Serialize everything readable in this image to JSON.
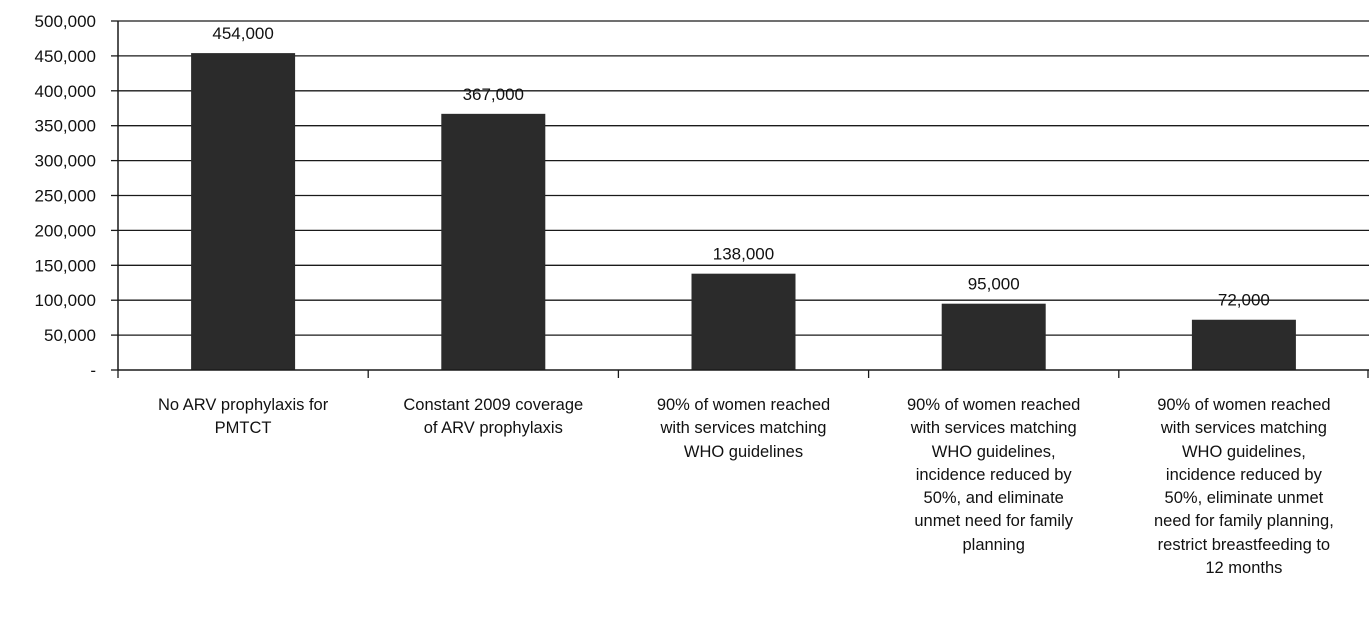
{
  "chart_data": {
    "type": "bar",
    "title": "",
    "xlabel": "",
    "ylabel": "",
    "ylim": [
      0,
      500000
    ],
    "y_ticks": [
      0,
      50000,
      100000,
      150000,
      200000,
      250000,
      300000,
      350000,
      400000,
      450000,
      500000
    ],
    "y_tick_labels": [
      "-",
      "50,000",
      "100,000",
      "150,000",
      "200,000",
      "250,000",
      "300,000",
      "350,000",
      "400,000",
      "450,000",
      "500,000"
    ],
    "grid": true,
    "legend": "none",
    "bar_color": "#2b2b2b",
    "categories": [
      "No ARV prophylaxis for\nPMTCT",
      "Constant 2009 coverage\nof ARV prophylaxis",
      "90% of women reached\nwith services matching\nWHO guidelines",
      "90% of women reached\nwith services matching\nWHO guidelines,\nincidence reduced by\n50%, and eliminate\nunmet need for family\nplanning",
      "90% of women reached\nwith services matching\nWHO guidelines,\nincidence reduced by\n50%, eliminate unmet\nneed for family planning,\nrestrict breastfeeding to\n12 months"
    ],
    "values": [
      454000,
      367000,
      138000,
      95000,
      72000
    ],
    "data_labels": [
      "454,000",
      "367,000",
      "138,000",
      "95,000",
      "72,000"
    ]
  }
}
